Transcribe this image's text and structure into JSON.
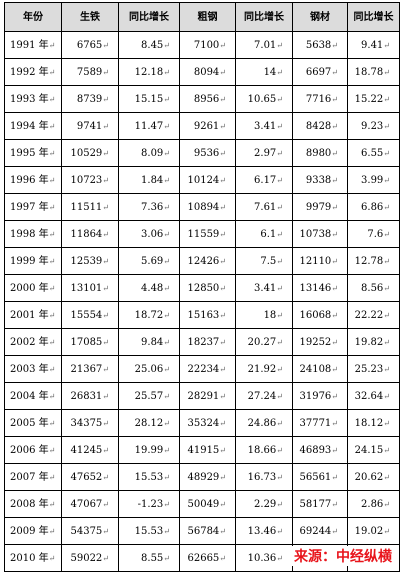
{
  "headers": [
    "年份",
    "生铁",
    "同比增长",
    "粗钢",
    "同比增长",
    "钢材",
    "同比增长"
  ],
  "rows": [
    [
      "1991 年",
      "6765",
      "8.45",
      "7100",
      "7.01",
      "5638",
      "9.41"
    ],
    [
      "1992 年",
      "7589",
      "12.18",
      "8094",
      "14",
      "6697",
      "18.78"
    ],
    [
      "1993 年",
      "8739",
      "15.15",
      "8956",
      "10.65",
      "7716",
      "15.22"
    ],
    [
      "1994 年",
      "9741",
      "11.47",
      "9261",
      "3.41",
      "8428",
      "9.23"
    ],
    [
      "1995 年",
      "10529",
      "8.09",
      "9536",
      "2.97",
      "8980",
      "6.55"
    ],
    [
      "1996 年",
      "10723",
      "1.84",
      "10124",
      "6.17",
      "9338",
      "3.99"
    ],
    [
      "1997 年",
      "11511",
      "7.36",
      "10894",
      "7.61",
      "9979",
      "6.86"
    ],
    [
      "1998 年",
      "11864",
      "3.06",
      "11559",
      "6.1",
      "10738",
      "7.6"
    ],
    [
      "1999 年",
      "12539",
      "5.69",
      "12426",
      "7.5",
      "12110",
      "12.78"
    ],
    [
      "2000 年",
      "13101",
      "4.48",
      "12850",
      "3.41",
      "13146",
      "8.56"
    ],
    [
      "2001 年",
      "15554",
      "18.72",
      "15163",
      "18",
      "16068",
      "22.22"
    ],
    [
      "2002 年",
      "17085",
      "9.84",
      "18237",
      "20.27",
      "19252",
      "19.82"
    ],
    [
      "2003 年",
      "21367",
      "25.06",
      "22234",
      "21.92",
      "24108",
      "25.23"
    ],
    [
      "2004 年",
      "26831",
      "25.57",
      "28291",
      "27.24",
      "31976",
      "32.64"
    ],
    [
      "2005 年",
      "34375",
      "28.12",
      "35324",
      "24.86",
      "37771",
      "18.12"
    ],
    [
      "2006 年",
      "41245",
      "19.99",
      "41915",
      "18.66",
      "46893",
      "24.15"
    ],
    [
      "2007 年",
      "47652",
      "15.53",
      "48929",
      "16.73",
      "56561",
      "20.62"
    ],
    [
      "2008 年",
      "47067",
      "-1.23",
      "50049",
      "2.29",
      "58177",
      "2.86"
    ],
    [
      "2009 年",
      "54375",
      "15.53",
      "56784",
      "13.46",
      "69244",
      "19.02"
    ],
    [
      "2010 年",
      "59022",
      "8.55",
      "62665",
      "10.36",
      "",
      ""
    ]
  ],
  "source_label": "来源：中经纵横",
  "colors": {
    "header_bg": "#dcdcdc",
    "source_red": "#e8141b"
  }
}
